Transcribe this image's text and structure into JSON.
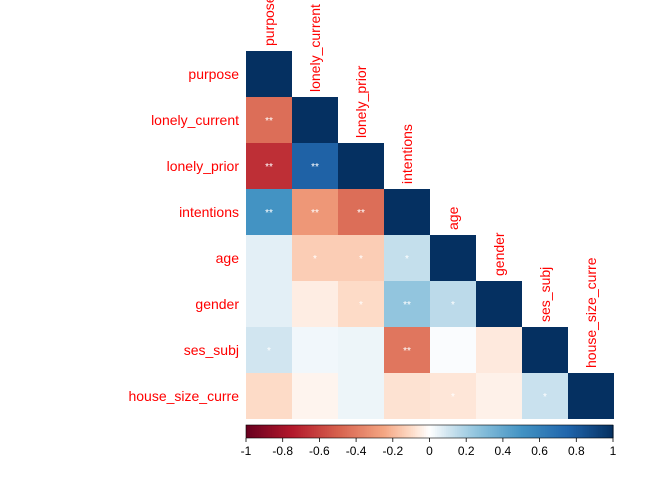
{
  "chart_data": {
    "type": "heatmap",
    "variables": [
      "purpose",
      "lonely_current",
      "lonely_prior",
      "intentions",
      "age",
      "gender",
      "ses_subj",
      "house_size_curre"
    ],
    "correlations": [
      [
        1
      ],
      [
        -0.45,
        1
      ],
      [
        -0.67,
        0.77,
        1
      ],
      [
        0.5,
        -0.3,
        -0.45,
        1
      ],
      [
        0.06,
        -0.14,
        -0.14,
        0.13,
        1
      ],
      [
        0.06,
        -0.05,
        -0.1,
        0.25,
        0.15,
        1
      ],
      [
        0.1,
        0.03,
        0.04,
        -0.42,
        0.01,
        -0.06,
        1
      ],
      [
        -0.1,
        -0.03,
        0.04,
        -0.08,
        -0.07,
        -0.04,
        0.12,
        1
      ]
    ],
    "significance": [
      [
        ""
      ],
      [
        "**",
        ""
      ],
      [
        "**",
        "**",
        ""
      ],
      [
        "**",
        "**",
        "**",
        ""
      ],
      [
        "",
        "*",
        "*",
        "*",
        ""
      ],
      [
        "",
        "",
        "*",
        "**",
        "*",
        ""
      ],
      [
        "*",
        "",
        "",
        "**",
        "",
        "",
        ""
      ],
      [
        "",
        "",
        "",
        "",
        "*",
        "",
        "*",
        ""
      ]
    ],
    "layout": "lower-triangle",
    "colorbar": {
      "ticks": [
        "-1",
        "-0.8",
        "-0.6",
        "-0.4",
        "-0.2",
        "0",
        "0.2",
        "0.4",
        "0.6",
        "0.8",
        "1"
      ],
      "range": [
        -1,
        1
      ],
      "placement": "bottom"
    },
    "color_scale": {
      "stops": [
        [
          -1,
          "#67001f"
        ],
        [
          -0.75,
          "#b2182b"
        ],
        [
          -0.5,
          "#d6604d"
        ],
        [
          -0.25,
          "#f4a582"
        ],
        [
          -0.1,
          "#fddbc7"
        ],
        [
          0,
          "#ffffff"
        ],
        [
          0.1,
          "#d1e5f0"
        ],
        [
          0.25,
          "#92c5de"
        ],
        [
          0.5,
          "#4393c3"
        ],
        [
          0.75,
          "#2166ac"
        ],
        [
          1,
          "#053061"
        ]
      ]
    },
    "label_color": "#ff0000"
  }
}
